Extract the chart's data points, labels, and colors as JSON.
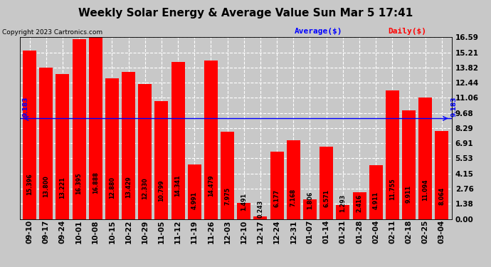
{
  "title": "Weekly Solar Energy & Average Value Sun Mar 5 17:41",
  "copyright": "Copyright 2023 Cartronics.com",
  "categories": [
    "09-10",
    "09-17",
    "09-24",
    "10-01",
    "10-08",
    "10-15",
    "10-22",
    "10-29",
    "11-05",
    "11-12",
    "11-19",
    "11-26",
    "12-03",
    "12-10",
    "12-17",
    "12-24",
    "12-31",
    "01-07",
    "01-14",
    "01-21",
    "01-28",
    "02-04",
    "02-11",
    "02-18",
    "02-25",
    "03-04"
  ],
  "values": [
    15.396,
    13.8,
    13.221,
    16.395,
    16.888,
    12.88,
    13.429,
    12.33,
    10.799,
    14.341,
    4.991,
    14.479,
    7.975,
    1.491,
    0.243,
    6.177,
    7.168,
    1.806,
    6.571,
    1.293,
    2.416,
    4.911,
    11.755,
    9.911,
    11.094,
    8.064
  ],
  "average": 9.183,
  "bar_color": "#ff0000",
  "average_color": "#0000ff",
  "background_color": "#c8c8c8",
  "plot_bg_color": "#c8c8c8",
  "ylim": [
    0,
    16.59
  ],
  "yticks": [
    0.0,
    1.38,
    2.76,
    4.15,
    5.53,
    6.91,
    8.29,
    9.68,
    11.06,
    12.44,
    13.82,
    15.21,
    16.59
  ],
  "grid_color": "white",
  "legend_average_label": "Average($)",
  "legend_daily_label": "Daily($)",
  "average_label": "9.183",
  "title_fontsize": 11,
  "tick_fontsize": 7.5,
  "bar_label_fontsize": 5.8,
  "copyright_fontsize": 6.5,
  "legend_fontsize": 8
}
